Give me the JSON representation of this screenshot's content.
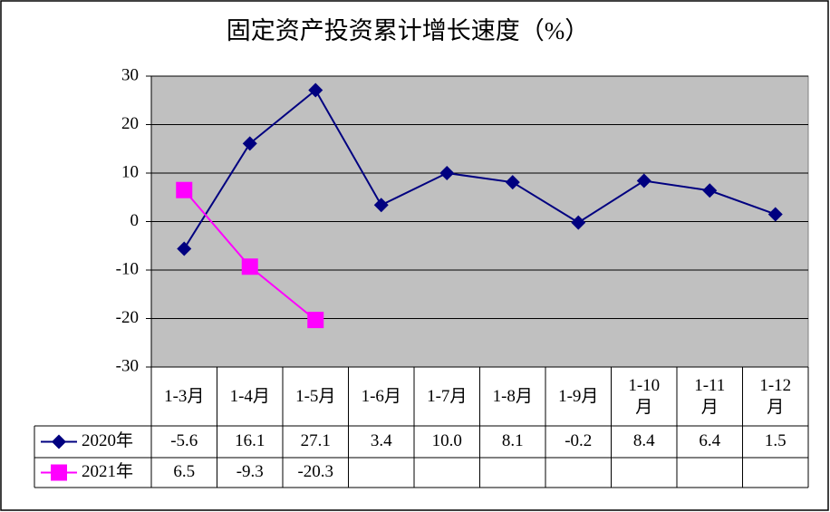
{
  "chart_data": {
    "type": "line",
    "title": "固定资产投资累计增长速度（%）",
    "categories": [
      "1-3月",
      "1-4月",
      "1-5月",
      "1-6月",
      "1-7月",
      "1-8月",
      "1-9月",
      "1-10月",
      "1-11月",
      "1-12月"
    ],
    "series": [
      {
        "name": "2020年",
        "color": "#000080",
        "marker": "diamond",
        "values": [
          -5.6,
          16.1,
          27.1,
          3.4,
          10.0,
          8.1,
          -0.2,
          8.4,
          6.4,
          1.5
        ],
        "value_labels": [
          "-5.6",
          "16.1",
          "27.1",
          "3.4",
          "10.0",
          "8.1",
          "-0.2",
          "8.4",
          "6.4",
          "1.5"
        ]
      },
      {
        "name": "2021年",
        "color": "#ff00ff",
        "marker": "square",
        "values": [
          6.5,
          -9.3,
          -20.3,
          null,
          null,
          null,
          null,
          null,
          null,
          null
        ],
        "value_labels": [
          "6.5",
          "-9.3",
          "-20.3",
          null,
          null,
          null,
          null,
          null,
          null,
          null
        ]
      }
    ],
    "ylim": [
      -30,
      30
    ],
    "yticks": [
      -30,
      -20,
      -10,
      0,
      10,
      20,
      30
    ],
    "grid": true,
    "plot_background": "#c0c0c0"
  }
}
